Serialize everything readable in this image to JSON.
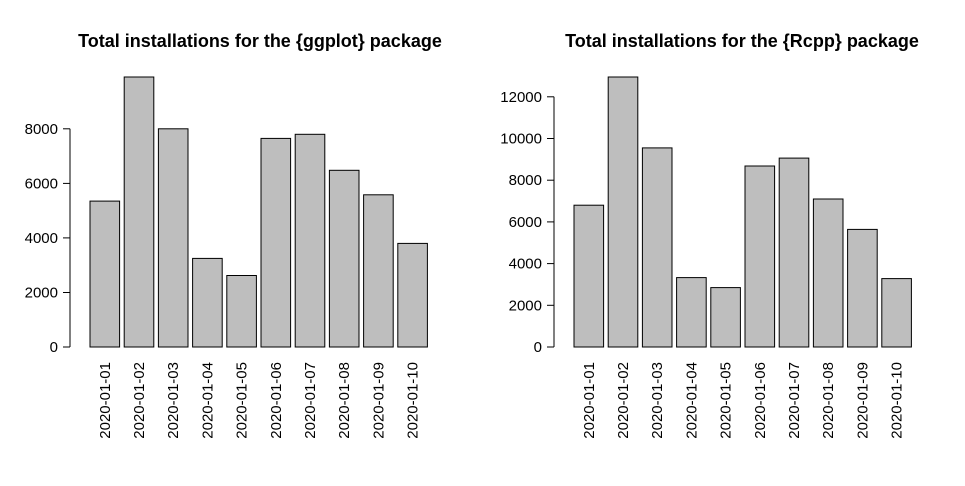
{
  "chart_data": [
    {
      "type": "bar",
      "title": "Total installations for the {ggplot} package",
      "xlabel": "",
      "ylabel": "",
      "categories": [
        "2020-01-01",
        "2020-01-02",
        "2020-01-03",
        "2020-01-04",
        "2020-01-05",
        "2020-01-06",
        "2020-01-07",
        "2020-01-08",
        "2020-01-09",
        "2020-01-10"
      ],
      "values": [
        5350,
        9900,
        8000,
        3250,
        2620,
        7650,
        7800,
        6480,
        5580,
        3800
      ],
      "yticks": [
        0,
        2000,
        4000,
        6000,
        8000
      ],
      "ylim": [
        0,
        9900
      ],
      "bar_color": "#bebebe",
      "grid": false
    },
    {
      "type": "bar",
      "title": "Total installations for the {Rcpp} package",
      "xlabel": "",
      "ylabel": "",
      "categories": [
        "2020-01-01",
        "2020-01-02",
        "2020-01-03",
        "2020-01-04",
        "2020-01-05",
        "2020-01-06",
        "2020-01-07",
        "2020-01-08",
        "2020-01-09",
        "2020-01-10"
      ],
      "values": [
        6800,
        12950,
        9550,
        3330,
        2850,
        8680,
        9060,
        7100,
        5640,
        3280
      ],
      "yticks": [
        0,
        2000,
        4000,
        6000,
        8000,
        10000,
        12000
      ],
      "ylim": [
        0,
        12950
      ],
      "bar_color": "#bebebe",
      "grid": false
    }
  ]
}
